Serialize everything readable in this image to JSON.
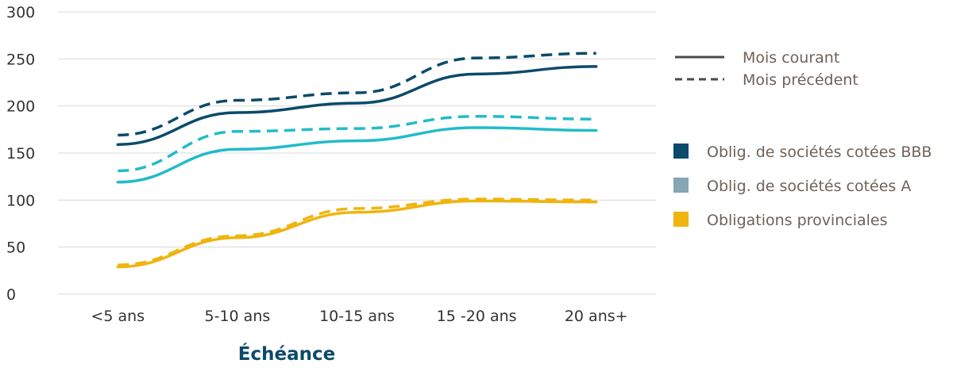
{
  "chart_data": {
    "type": "line",
    "categories": [
      "<5 ans",
      "5-10 ans",
      "10-15 ans",
      "15 -20 ans",
      "20 ans+"
    ],
    "xlabel": "Échéance",
    "ylabel": "",
    "ylim": [
      0,
      300
    ],
    "yticks": [
      0,
      50,
      100,
      150,
      200,
      250,
      300
    ],
    "grid": true,
    "style_legend": [
      {
        "label": "Mois courant",
        "dash": "solid"
      },
      {
        "label": "Mois précédent",
        "dash": "dashed"
      }
    ],
    "series": [
      {
        "name": "Oblig. de sociétés cotées BBB",
        "color": "#0b4a6a",
        "legend_color": "#0b4a6a",
        "current": [
          159,
          193,
          203,
          234,
          242
        ],
        "previous": [
          169,
          206,
          214,
          251,
          256
        ]
      },
      {
        "name": "Oblig. de sociétés cotées A",
        "color": "#22bcc8",
        "legend_color": "#84a6b5",
        "current": [
          119,
          154,
          163,
          177,
          174
        ],
        "previous": [
          131,
          173,
          176,
          189,
          186
        ]
      },
      {
        "name": "Obligations provinciales",
        "color": "#efb40e",
        "legend_color": "#efb40e",
        "current": [
          29,
          60,
          87,
          99,
          98
        ],
        "previous": [
          31,
          62,
          91,
          101,
          100
        ]
      }
    ]
  }
}
